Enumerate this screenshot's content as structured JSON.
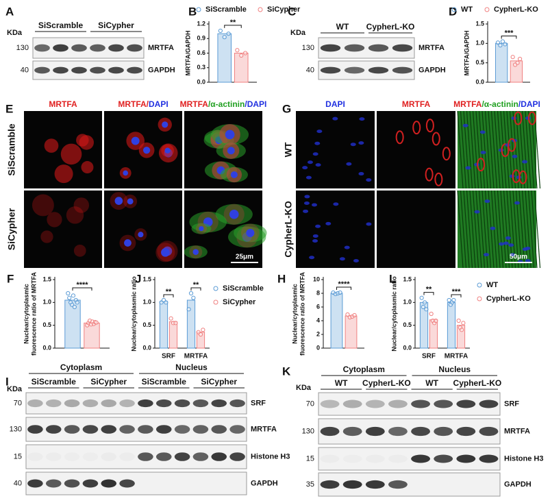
{
  "panels": {
    "A": {
      "letter": "A",
      "kda": "KDa",
      "groups": [
        "SiScramble",
        "SiCypher"
      ],
      "markers": [
        "130",
        "40"
      ],
      "proteins": [
        "MRTFA",
        "GAPDH"
      ]
    },
    "B": {
      "letter": "B",
      "ylabel": [
        "MRTFA/GAPDH"
      ],
      "ylim": [
        0,
        1.2
      ],
      "yticks": [
        {
          "value": 0,
          "label": "0.0"
        },
        0.3,
        0.6,
        0.9,
        1.2
      ],
      "series": [
        {
          "name": "SiScramble",
          "color": "#5b9bd5",
          "values": [
            1.0
          ],
          "points": [
            [
              1.06,
              0.93,
              1.0
            ]
          ]
        },
        {
          "name": "SiCypher",
          "color": "#f08080",
          "values": [
            0.6
          ],
          "points": [
            [
              0.66,
              0.55,
              0.6
            ]
          ]
        }
      ],
      "sig": [
        "**"
      ]
    },
    "C": {
      "letter": "C",
      "kda": "KDa",
      "groups": [
        "WT",
        "CypherL-KO"
      ],
      "markers": [
        "130",
        "40"
      ],
      "proteins": [
        "MRTFA",
        "GAPDH"
      ]
    },
    "D": {
      "letter": "D",
      "ylabel": [
        "MRTFA/GAPDH"
      ],
      "ylim": [
        0,
        1.5
      ],
      "yticks": [
        {
          "value": 0,
          "label": "0.0"
        },
        0.5,
        {
          "value": 1,
          "label": "1.0"
        },
        1.5
      ],
      "series": [
        {
          "name": "WT",
          "color": "#5b9bd5",
          "values": [
            1.0
          ],
          "points": [
            [
              1.02,
              0.95,
              1.05,
              0.98
            ]
          ]
        },
        {
          "name": "CypherL-KO",
          "color": "#f08080",
          "values": [
            0.55
          ],
          "points": [
            [
              0.65,
              0.45,
              0.5,
              0.6
            ]
          ]
        }
      ],
      "sig": [
        "***"
      ]
    },
    "E": {
      "letter": "E",
      "columns": [
        [
          {
            "text": "MRTFA",
            "color": "#e02020"
          }
        ],
        [
          {
            "text": "MRTFA",
            "color": "#e02020"
          },
          {
            "text": "/",
            "color": "#e02020"
          },
          {
            "text": "DAPI",
            "color": "#2030e0"
          }
        ],
        [
          {
            "text": "MRTFA",
            "color": "#e02020"
          },
          {
            "text": "/",
            "color": "#20a020"
          },
          {
            "text": "α-actinin",
            "color": "#20a020"
          },
          {
            "text": "/",
            "color": "#2030e0"
          },
          {
            "text": "DAPI",
            "color": "#2030e0"
          }
        ]
      ],
      "rows": [
        "SiScramble",
        "SiCypher"
      ],
      "scale": "25μm"
    },
    "G": {
      "letter": "G",
      "columns": [
        [
          {
            "text": "DAPI",
            "color": "#2030e0"
          }
        ],
        [
          {
            "text": "MRTFA",
            "color": "#e02020"
          }
        ],
        [
          {
            "text": "MRTFA",
            "color": "#e02020"
          },
          {
            "text": "/",
            "color": "#20a020"
          },
          {
            "text": "α-actinin",
            "color": "#20a020"
          },
          {
            "text": "/",
            "color": "#2030e0"
          },
          {
            "text": "DAPI",
            "color": "#2030e0"
          }
        ]
      ],
      "rows": [
        "WT",
        "CypherL-KO"
      ],
      "scale": "50μm"
    },
    "F": {
      "letter": "F",
      "ylabel": [
        "Nuclear/cytoplasmic",
        "fluorescence ratio of MRTFA"
      ],
      "ylim": [
        0,
        1.5
      ],
      "yticks": [
        {
          "value": 0,
          "label": "0.0"
        },
        0.5,
        {
          "value": 1,
          "label": "1.0"
        },
        1.5
      ],
      "series": [
        {
          "color": "#5b9bd5",
          "values": [
            1.05
          ],
          "points": [
            [
              1.2,
              1.1,
              1.0,
              0.95,
              1.15,
              0.9,
              1.05,
              1.0
            ]
          ]
        },
        {
          "color": "#f08080",
          "values": [
            0.55
          ],
          "points": [
            [
              0.5,
              0.55,
              0.6,
              0.52,
              0.58,
              0.53,
              0.57,
              0.56
            ]
          ]
        }
      ],
      "sig": [
        "****"
      ]
    },
    "J": {
      "letter": "J",
      "ylabel": [
        "Nuclear/cytoplasmic ratio"
      ],
      "ylim": [
        0,
        1.5
      ],
      "yticks": [
        {
          "value": 0,
          "label": "0.0"
        },
        0.5,
        {
          "value": 1,
          "label": "1.0"
        },
        1.5
      ],
      "categories": [
        "SRF",
        "MRTFA"
      ],
      "series": [
        {
          "name": "SiScramble",
          "color": "#5b9bd5",
          "values": [
            1.02,
            1.05
          ],
          "points": [
            [
              1.0,
              1.05,
              1.0
            ],
            [
              0.85,
              1.2,
              1.1
            ]
          ]
        },
        {
          "name": "SiCypher",
          "color": "#f08080",
          "values": [
            0.58,
            0.35
          ],
          "points": [
            [
              0.65,
              0.55,
              0.55
            ],
            [
              0.35,
              0.3,
              0.4
            ]
          ]
        }
      ],
      "sig": [
        "**",
        "**"
      ]
    },
    "H": {
      "letter": "H",
      "ylabel": [
        "Nuclear/cytoplasmic",
        "fluorescence ratio of MRTFA"
      ],
      "ylim": [
        0,
        10
      ],
      "yticks": [
        0,
        2,
        4,
        6,
        8,
        10
      ],
      "series": [
        {
          "color": "#5b9bd5",
          "values": [
            8.0
          ],
          "points": [
            [
              8.1,
              7.9,
              8.0,
              8.1
            ]
          ]
        },
        {
          "color": "#f08080",
          "values": [
            4.7
          ],
          "points": [
            [
              4.9,
              4.5,
              4.6,
              4.8
            ]
          ]
        }
      ],
      "sig": [
        "****"
      ]
    },
    "L": {
      "letter": "L",
      "ylabel": [
        "Nuclear/cytoplasmic ratio"
      ],
      "ylim": [
        0,
        1.5
      ],
      "yticks": [
        {
          "value": 0,
          "label": "0.0"
        },
        0.5,
        {
          "value": 1,
          "label": "1.0"
        },
        1.5
      ],
      "categories": [
        "SRF",
        "MRTFA"
      ],
      "series": [
        {
          "name": "WT",
          "color": "#5b9bd5",
          "values": [
            1.0,
            1.0
          ],
          "points": [
            [
              1.1,
              0.9,
              1.0,
              0.85
            ],
            [
              1.05,
              0.95,
              1.0,
              1.05
            ]
          ]
        },
        {
          "name": "CypherL-KO",
          "color": "#f08080",
          "values": [
            0.62,
            0.5
          ],
          "points": [
            [
              0.75,
              0.6,
              0.55,
              0.6
            ],
            [
              0.6,
              0.45,
              0.4,
              0.55
            ]
          ]
        }
      ],
      "sig": [
        "**",
        "***"
      ]
    },
    "I": {
      "letter": "I",
      "kda": "KDa",
      "headers": [
        "Cytoplasm",
        "Nucleus"
      ],
      "groups": [
        "SiScramble",
        "SiCypher",
        "SiScramble",
        "SiCypher"
      ],
      "markers": [
        "70",
        "130",
        "15",
        "40"
      ],
      "proteins": [
        "SRF",
        "MRTFA",
        "Histone H3",
        "GAPDH"
      ]
    },
    "K": {
      "letter": "K",
      "kda": "KDa",
      "headers": [
        "Cytoplasm",
        "Nucleus"
      ],
      "groups": [
        "WT",
        "CypherL-KO",
        "WT",
        "CypherL-KO"
      ],
      "markers": [
        "70",
        "130",
        "15",
        "35"
      ],
      "proteins": [
        "SRF",
        "MRTFA",
        "Histone H3",
        "GAPDH"
      ]
    }
  }
}
